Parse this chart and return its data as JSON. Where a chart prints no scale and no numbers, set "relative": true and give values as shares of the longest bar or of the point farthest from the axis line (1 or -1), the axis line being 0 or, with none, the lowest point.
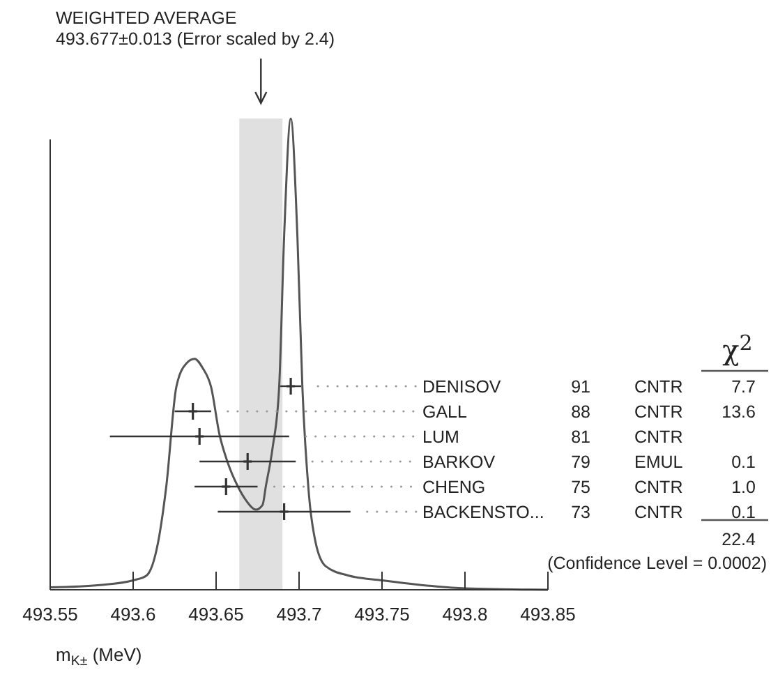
{
  "chart_data": [
    {
      "type": "line",
      "title": "WEIGHTED AVERAGE",
      "subtitle": "493.677±0.013 (Error scaled by 2.4)",
      "xlabel": "m$_{K±}$ (MeV)",
      "relative": true,
      "color": "#555555",
      "x": [
        493.55,
        493.58,
        493.6,
        493.608,
        493.615,
        493.62,
        493.626,
        493.632,
        493.637,
        493.642,
        493.647,
        493.652,
        493.657,
        493.663,
        493.668,
        493.674,
        493.678,
        493.68,
        493.684,
        493.688,
        493.691,
        493.695,
        493.699,
        493.702,
        493.706,
        493.71,
        493.716,
        493.73,
        493.75,
        493.78,
        493.8,
        493.85
      ],
      "values": [
        0.005,
        0.01,
        0.02,
        0.03,
        0.1,
        0.22,
        0.43,
        0.48,
        0.49,
        0.47,
        0.43,
        0.33,
        0.27,
        0.22,
        0.19,
        0.17,
        0.18,
        0.22,
        0.3,
        0.43,
        0.75,
        1,
        0.75,
        0.43,
        0.2,
        0.1,
        0.05,
        0.03,
        0.02,
        0.008,
        0.003,
        0
      ],
      "xlim": [
        493.55,
        493.85
      ],
      "xticks": [
        493.55,
        493.6,
        493.65,
        493.7,
        493.75,
        493.8,
        493.85
      ],
      "tick_labels": "x",
      "bands": [
        {
          "axis": "x",
          "from": 493.664,
          "to": 493.69,
          "color": "#e0e0e0"
        }
      ]
    },
    {
      "type": "scatter",
      "orientation": "horizontal",
      "color": "#333333",
      "categories": [
        "DENISOV",
        "GALL",
        "LUM",
        "BARKOV",
        "CHENG",
        "BACKENSTO..."
      ],
      "values": [
        493.695,
        493.636,
        493.64,
        493.669,
        493.656,
        493.691
      ],
      "errors": [
        0.0063,
        0.011,
        0.054,
        0.029,
        0.019,
        0.04
      ],
      "xlim": [
        493.55,
        493.85
      ],
      "xticks": [
        493.55,
        493.6,
        493.65,
        493.7,
        493.75,
        493.8,
        493.85
      ],
      "tick_labels": "y",
      "marker": "cross",
      "annotations": [
        "91 CNTR 7.7",
        "88 CNTR 13.6",
        "81 CNTR",
        "79 EMUL 0.1",
        "75 CNTR 1.0",
        "73 CNTR 0.1",
        "χ$^{2}$",
        "22.4",
        "(Confidence Level = 0.0002)"
      ]
    }
  ]
}
